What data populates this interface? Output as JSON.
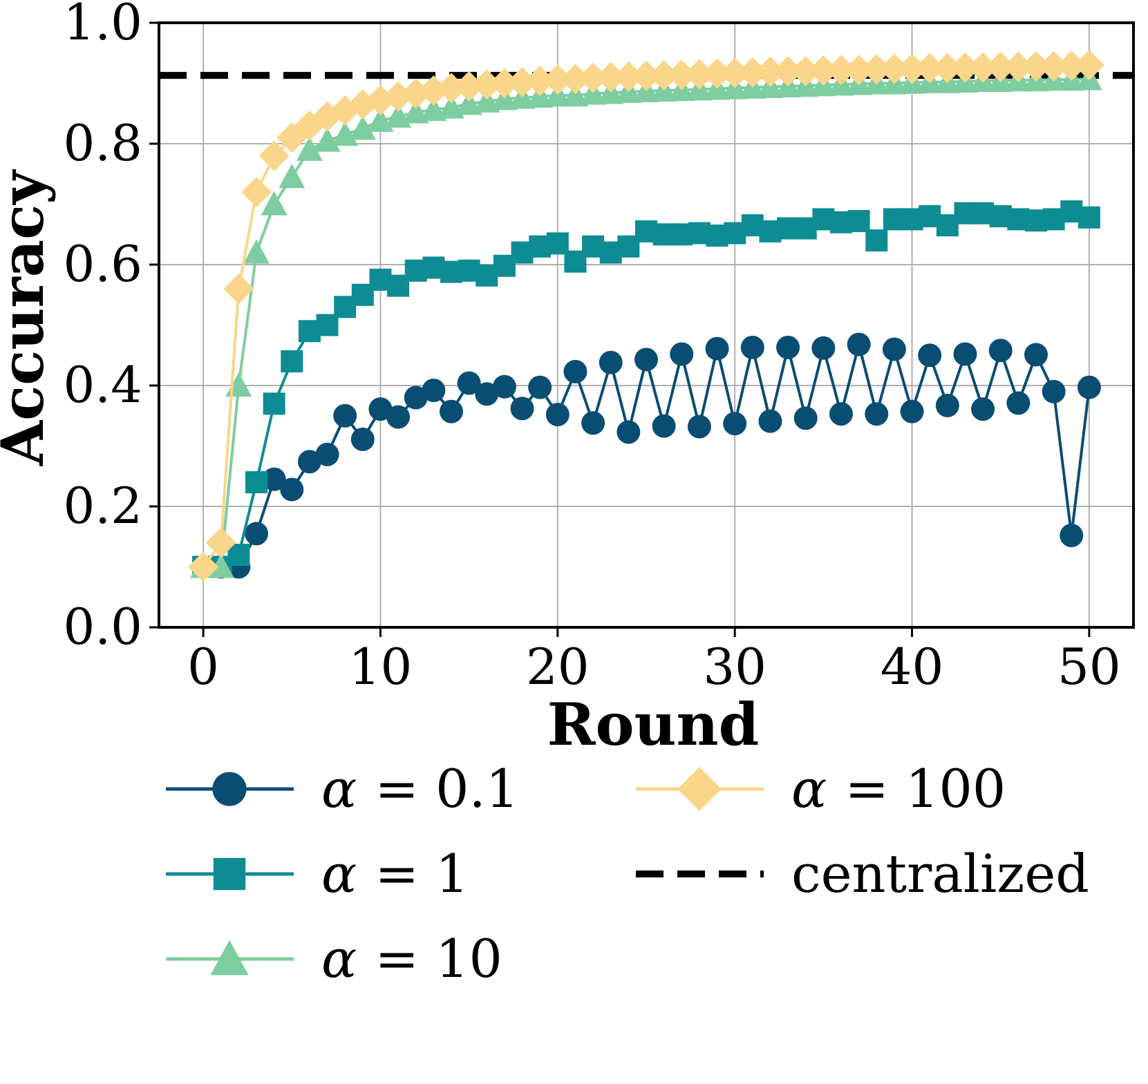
{
  "chart_data": {
    "type": "line",
    "title": "",
    "xlabel": "Round",
    "ylabel": "Accuracy",
    "xlim": [
      -2.5,
      52.5
    ],
    "ylim": [
      0.0,
      1.0
    ],
    "xticks": [
      0,
      10,
      20,
      30,
      40,
      50
    ],
    "xtick_labels": [
      "0",
      "10",
      "20",
      "30",
      "40",
      "50"
    ],
    "yticks": [
      0.0,
      0.2,
      0.4,
      0.6,
      0.8,
      1.0
    ],
    "ytick_labels": [
      "0.0",
      "0.2",
      "0.4",
      "0.6",
      "0.8",
      "1.0"
    ],
    "grid": true,
    "legend_position": "below",
    "x": [
      0,
      1,
      2,
      3,
      4,
      5,
      6,
      7,
      8,
      9,
      10,
      11,
      12,
      13,
      14,
      15,
      16,
      17,
      18,
      19,
      20,
      21,
      22,
      23,
      24,
      25,
      26,
      27,
      28,
      29,
      30,
      31,
      32,
      33,
      34,
      35,
      36,
      37,
      38,
      39,
      40,
      41,
      42,
      43,
      44,
      45,
      46,
      47,
      48,
      49,
      50
    ],
    "series": [
      {
        "name": "α = 0.1",
        "label_symbol": "α",
        "label_value": "= 0.1",
        "color": "#0a4d73",
        "marker": "circle",
        "values": [
          0.1,
          0.1,
          0.1,
          0.155,
          0.245,
          0.228,
          0.274,
          0.286,
          0.35,
          0.311,
          0.361,
          0.348,
          0.38,
          0.392,
          0.357,
          0.404,
          0.386,
          0.398,
          0.362,
          0.397,
          0.352,
          0.423,
          0.338,
          0.438,
          0.323,
          0.443,
          0.333,
          0.452,
          0.332,
          0.461,
          0.337,
          0.463,
          0.341,
          0.463,
          0.346,
          0.462,
          0.353,
          0.468,
          0.353,
          0.46,
          0.357,
          0.45,
          0.367,
          0.452,
          0.361,
          0.458,
          0.371,
          0.451,
          0.39,
          0.152,
          0.397
        ]
      },
      {
        "name": "α = 1",
        "label_symbol": "α",
        "label_value": "= 1",
        "color": "#0e8c94",
        "marker": "square",
        "values": [
          0.1,
          0.1,
          0.12,
          0.24,
          0.37,
          0.44,
          0.49,
          0.5,
          0.53,
          0.55,
          0.575,
          0.565,
          0.59,
          0.595,
          0.588,
          0.59,
          0.582,
          0.598,
          0.62,
          0.63,
          0.635,
          0.605,
          0.63,
          0.62,
          0.63,
          0.655,
          0.65,
          0.65,
          0.652,
          0.648,
          0.652,
          0.665,
          0.655,
          0.66,
          0.66,
          0.675,
          0.67,
          0.672,
          0.64,
          0.675,
          0.675,
          0.68,
          0.665,
          0.685,
          0.685,
          0.68,
          0.675,
          0.673,
          0.675,
          0.688,
          0.678
        ]
      },
      {
        "name": "α = 10",
        "label_symbol": "α",
        "label_value": "= 10",
        "color": "#7ecda0",
        "marker": "triangle",
        "values": [
          0.1,
          0.1,
          0.4,
          0.62,
          0.7,
          0.745,
          0.79,
          0.805,
          0.815,
          0.825,
          0.838,
          0.845,
          0.852,
          0.856,
          0.86,
          0.866,
          0.87,
          0.874,
          0.876,
          0.878,
          0.88,
          0.88,
          0.883,
          0.884,
          0.886,
          0.887,
          0.888,
          0.889,
          0.89,
          0.891,
          0.892,
          0.893,
          0.894,
          0.895,
          0.896,
          0.897,
          0.898,
          0.899,
          0.9,
          0.9,
          0.901,
          0.902,
          0.902,
          0.903,
          0.904,
          0.904,
          0.905,
          0.905,
          0.906,
          0.906,
          0.907
        ]
      },
      {
        "name": "α = 100",
        "label_symbol": "α",
        "label_value": "= 100",
        "color": "#f9d68a",
        "marker": "diamond",
        "values": [
          0.1,
          0.14,
          0.56,
          0.72,
          0.78,
          0.81,
          0.83,
          0.845,
          0.855,
          0.865,
          0.872,
          0.878,
          0.883,
          0.888,
          0.892,
          0.895,
          0.898,
          0.9,
          0.902,
          0.904,
          0.906,
          0.907,
          0.909,
          0.91,
          0.911,
          0.912,
          0.913,
          0.914,
          0.915,
          0.916,
          0.917,
          0.918,
          0.919,
          0.92,
          0.92,
          0.921,
          0.922,
          0.922,
          0.923,
          0.924,
          0.924,
          0.925,
          0.925,
          0.926,
          0.926,
          0.927,
          0.927,
          0.928,
          0.928,
          0.929,
          0.93
        ]
      }
    ],
    "reference_line": {
      "name": "centralized",
      "value": 0.913,
      "color": "#000000",
      "style": "dashed"
    }
  }
}
